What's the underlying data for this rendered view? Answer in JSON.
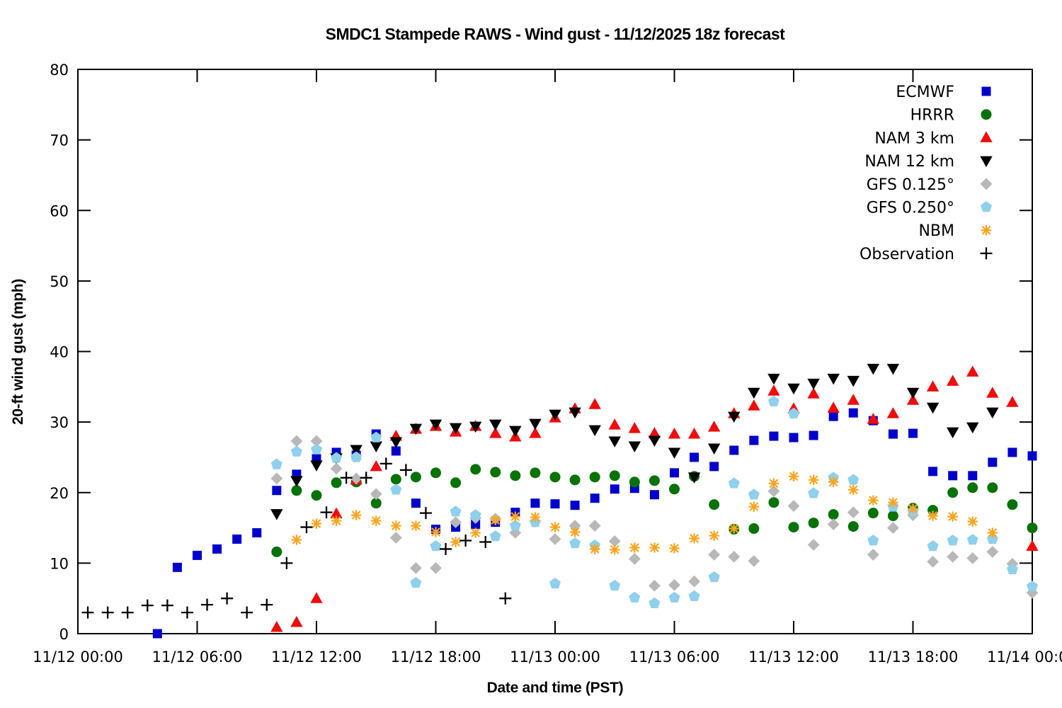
{
  "figure": {
    "background_color": "#ffffff",
    "border_color": "#000000"
  },
  "chart_data": {
    "type": "scatter",
    "title": "SMDC1 Stampede RAWS - Wind gust - 11/12/2025 18z forecast",
    "xlabel": "Date and time (PST)",
    "ylabel": "20-ft wind gust (mph)",
    "grid": false,
    "legend_position": "top-right-inside",
    "x_axis": {
      "unit": "hours since 11/12 00:00 PST",
      "range": [
        0,
        48
      ],
      "tick_hours": [
        0,
        6,
        12,
        18,
        24,
        30,
        36,
        42,
        48
      ],
      "tick_labels": [
        "11/12 00:00",
        "11/12 06:00",
        "11/12 12:00",
        "11/12 18:00",
        "11/13 00:00",
        "11/13 06:00",
        "11/13 12:00",
        "11/13 18:00",
        "11/14 00:00"
      ]
    },
    "y_axis": {
      "range": [
        0,
        80
      ],
      "tick_values": [
        0,
        10,
        20,
        30,
        40,
        50,
        60,
        70,
        80
      ],
      "tick_labels": [
        "0",
        "10",
        "20",
        "30",
        "40",
        "50",
        "60",
        "70",
        "80"
      ]
    },
    "series": [
      {
        "name": "ECMWF",
        "marker": "square",
        "color": "#0000cc",
        "points": [
          [
            4,
            0
          ],
          [
            5,
            9.4
          ],
          [
            6,
            11.1
          ],
          [
            7,
            12
          ],
          [
            8,
            13.4
          ],
          [
            9,
            14.3
          ],
          [
            10,
            20.3
          ],
          [
            11,
            22.6
          ],
          [
            12,
            24.8
          ],
          [
            13,
            25.7
          ],
          [
            14,
            25.3
          ],
          [
            15,
            28.3
          ],
          [
            16,
            25.9
          ],
          [
            17,
            18.5
          ],
          [
            18,
            14.8
          ],
          [
            19,
            15.1
          ],
          [
            20,
            15.5
          ],
          [
            21,
            15.8
          ],
          [
            22,
            17.2
          ],
          [
            23,
            18.5
          ],
          [
            24,
            18.4
          ],
          [
            25,
            18.2
          ],
          [
            26,
            19.2
          ],
          [
            27,
            20.5
          ],
          [
            28,
            20.6
          ],
          [
            29,
            19.7
          ],
          [
            30,
            22.8
          ],
          [
            31,
            25
          ],
          [
            32,
            23.7
          ],
          [
            33,
            26
          ],
          [
            34,
            27.4
          ],
          [
            35,
            28
          ],
          [
            36,
            27.8
          ],
          [
            37,
            28.1
          ],
          [
            38,
            30.8
          ],
          [
            39,
            31.3
          ],
          [
            40,
            30.2
          ],
          [
            41,
            28.3
          ],
          [
            42,
            28.4
          ],
          [
            43,
            23
          ],
          [
            44,
            22.4
          ],
          [
            45,
            22.4
          ],
          [
            46,
            24.3
          ],
          [
            47,
            25.7
          ],
          [
            48,
            25.2
          ]
        ]
      },
      {
        "name": "HRRR",
        "marker": "circle",
        "color": "#077307",
        "points": [
          [
            10,
            11.6
          ],
          [
            11,
            20.3
          ],
          [
            12,
            19.6
          ],
          [
            13,
            21.4
          ],
          [
            14,
            21.5
          ],
          [
            15,
            18.5
          ],
          [
            16,
            21.9
          ],
          [
            17,
            22.2
          ],
          [
            18,
            22.8
          ],
          [
            19,
            21.4
          ],
          [
            20,
            23.3
          ],
          [
            21,
            22.9
          ],
          [
            22,
            22.4
          ],
          [
            23,
            22.8
          ],
          [
            24,
            22.2
          ],
          [
            25,
            21.8
          ],
          [
            26,
            22.2
          ],
          [
            27,
            22.4
          ],
          [
            28,
            21.5
          ],
          [
            29,
            21.7
          ],
          [
            30,
            20.5
          ],
          [
            31,
            22.3
          ],
          [
            32,
            18.3
          ],
          [
            33,
            14.8
          ],
          [
            34,
            14.9
          ],
          [
            35,
            18.6
          ],
          [
            36,
            15.1
          ],
          [
            37,
            15.7
          ],
          [
            38,
            16.9
          ],
          [
            39,
            15.2
          ],
          [
            40,
            17.1
          ],
          [
            41,
            16.7
          ],
          [
            42,
            17.8
          ],
          [
            43,
            17.5
          ],
          [
            44,
            20
          ],
          [
            45,
            20.7
          ],
          [
            46,
            20.7
          ],
          [
            47,
            18.3
          ],
          [
            48,
            15
          ]
        ]
      },
      {
        "name": "NAM 3 km",
        "marker": "triangle-up",
        "color": "#f00c0c",
        "points": [
          [
            10,
            0.9
          ],
          [
            11,
            1.6
          ],
          [
            12,
            5
          ],
          [
            13,
            17
          ],
          [
            14,
            21.8
          ],
          [
            15,
            23.7
          ],
          [
            16,
            28
          ],
          [
            17,
            29
          ],
          [
            18,
            29.4
          ],
          [
            19,
            28.6
          ],
          [
            20,
            29.4
          ],
          [
            21,
            28.4
          ],
          [
            22,
            27.9
          ],
          [
            23,
            28.4
          ],
          [
            24,
            30.6
          ],
          [
            25,
            31.9
          ],
          [
            26,
            32.5
          ],
          [
            27,
            29.6
          ],
          [
            28,
            29.1
          ],
          [
            29,
            28.4
          ],
          [
            30,
            28.3
          ],
          [
            31,
            28.3
          ],
          [
            32,
            29.3
          ],
          [
            33,
            31.2
          ],
          [
            34,
            32.3
          ],
          [
            35,
            34.4
          ],
          [
            36,
            31.9
          ],
          [
            37,
            34
          ],
          [
            38,
            32
          ],
          [
            39,
            33.1
          ],
          [
            40,
            30.4
          ],
          [
            41,
            31.2
          ],
          [
            42,
            33.1
          ],
          [
            43,
            35
          ],
          [
            44,
            35.8
          ],
          [
            45,
            37.1
          ],
          [
            46,
            34.1
          ],
          [
            47,
            32.8
          ],
          [
            48,
            12.4
          ]
        ]
      },
      {
        "name": "NAM 12 km",
        "marker": "triangle-down",
        "color": "#000000",
        "points": [
          [
            10,
            17
          ],
          [
            11,
            21.7
          ],
          [
            12,
            23.9
          ],
          [
            13,
            24.9
          ],
          [
            14,
            26.1
          ],
          [
            15,
            26.6
          ],
          [
            16,
            27.2
          ],
          [
            17,
            29.1
          ],
          [
            18,
            29.7
          ],
          [
            19,
            29.2
          ],
          [
            20,
            29.4
          ],
          [
            21,
            29.7
          ],
          [
            22,
            28.8
          ],
          [
            23,
            29.8
          ],
          [
            24,
            31.1
          ],
          [
            25,
            31.4
          ],
          [
            26,
            28.9
          ],
          [
            27,
            27.3
          ],
          [
            28,
            26.6
          ],
          [
            29,
            27.4
          ],
          [
            30,
            25.7
          ],
          [
            31,
            22.2
          ],
          [
            32,
            26.3
          ],
          [
            33,
            30.8
          ],
          [
            34,
            34.2
          ],
          [
            35,
            36.2
          ],
          [
            36,
            34.8
          ],
          [
            37,
            35.5
          ],
          [
            38,
            36.2
          ],
          [
            39,
            35.9
          ],
          [
            40,
            37.6
          ],
          [
            41,
            37.6
          ],
          [
            42,
            34.2
          ],
          [
            43,
            32.1
          ],
          [
            44,
            28.6
          ],
          [
            45,
            29.3
          ],
          [
            46,
            31.4
          ]
        ]
      },
      {
        "name": "GFS 0.125°",
        "marker": "diamond",
        "color": "#b8b8b8",
        "points": [
          [
            10,
            22
          ],
          [
            11,
            27.3
          ],
          [
            12,
            27.3
          ],
          [
            13,
            23.4
          ],
          [
            14,
            22
          ],
          [
            15,
            19.8
          ],
          [
            16,
            13.6
          ],
          [
            17,
            9.3
          ],
          [
            18,
            9.3
          ],
          [
            19,
            15.8
          ],
          [
            20,
            16.4
          ],
          [
            21,
            16.3
          ],
          [
            22,
            14.3
          ],
          [
            23,
            15.9
          ],
          [
            24,
            13.4
          ],
          [
            25,
            15.3
          ],
          [
            26,
            15.3
          ],
          [
            27,
            13.1
          ],
          [
            28,
            10.6
          ],
          [
            29,
            6.8
          ],
          [
            30,
            6.9
          ],
          [
            31,
            7.4
          ],
          [
            32,
            11.2
          ],
          [
            33,
            10.9
          ],
          [
            34,
            10.3
          ],
          [
            35,
            20.2
          ],
          [
            36,
            18.1
          ],
          [
            37,
            12.6
          ],
          [
            38,
            15.5
          ],
          [
            39,
            17.2
          ],
          [
            40,
            11.2
          ],
          [
            41,
            15
          ],
          [
            42,
            16.8
          ],
          [
            43,
            10.2
          ],
          [
            44,
            10.9
          ],
          [
            45,
            10.7
          ],
          [
            46,
            11.6
          ],
          [
            47,
            9.9
          ],
          [
            48,
            5.8
          ]
        ]
      },
      {
        "name": "GFS 0.250°",
        "marker": "pentagon",
        "color": "#8fd0ec",
        "points": [
          [
            10,
            24
          ],
          [
            11,
            25.8
          ],
          [
            12,
            26.1
          ],
          [
            13,
            24.9
          ],
          [
            14,
            25
          ],
          [
            15,
            27.8
          ],
          [
            16,
            20.4
          ],
          [
            17,
            7.2
          ],
          [
            18,
            12.4
          ],
          [
            19,
            17.3
          ],
          [
            20,
            16.8
          ],
          [
            21,
            13.8
          ],
          [
            22,
            15.3
          ],
          [
            23,
            15.8
          ],
          [
            24,
            7.1
          ],
          [
            25,
            12.8
          ],
          [
            26,
            12.5
          ],
          [
            27,
            6.8
          ],
          [
            28,
            5.1
          ],
          [
            29,
            4.3
          ],
          [
            30,
            5.1
          ],
          [
            31,
            5.3
          ],
          [
            32,
            8
          ],
          [
            33,
            21.3
          ],
          [
            34,
            19.7
          ],
          [
            35,
            32.9
          ],
          [
            36,
            31.2
          ],
          [
            37,
            19.9
          ],
          [
            38,
            22.1
          ],
          [
            39,
            21.8
          ],
          [
            40,
            13.2
          ],
          [
            41,
            18
          ],
          [
            42,
            17.3
          ],
          [
            43,
            12.4
          ],
          [
            44,
            13.2
          ],
          [
            45,
            13.3
          ],
          [
            46,
            13.4
          ],
          [
            47,
            9.1
          ],
          [
            48,
            6.7
          ]
        ]
      },
      {
        "name": "NBM",
        "marker": "asterisk",
        "color": "#ffa41e",
        "points": [
          [
            11,
            13.3
          ],
          [
            12,
            15.6
          ],
          [
            13,
            16
          ],
          [
            14,
            16.8
          ],
          [
            15,
            16
          ],
          [
            16,
            15.3
          ],
          [
            17,
            15.3
          ],
          [
            18,
            14.4
          ],
          [
            19,
            13
          ],
          [
            20,
            14.3
          ],
          [
            21,
            16.1
          ],
          [
            22,
            16.6
          ],
          [
            23,
            16.5
          ],
          [
            24,
            15.1
          ],
          [
            25,
            14.4
          ],
          [
            26,
            12
          ],
          [
            27,
            11.9
          ],
          [
            28,
            12.2
          ],
          [
            29,
            12.2
          ],
          [
            30,
            12.1
          ],
          [
            31,
            13.5
          ],
          [
            32,
            13.9
          ],
          [
            33,
            14.9
          ],
          [
            34,
            18
          ],
          [
            35,
            21.3
          ],
          [
            36,
            22.3
          ],
          [
            37,
            21.8
          ],
          [
            38,
            21.5
          ],
          [
            39,
            20.4
          ],
          [
            40,
            18.9
          ],
          [
            41,
            18.6
          ],
          [
            42,
            17.7
          ],
          [
            43,
            16.7
          ],
          [
            44,
            16.6
          ],
          [
            45,
            15.9
          ],
          [
            46,
            14.3
          ]
        ]
      },
      {
        "name": "Observation",
        "marker": "plus",
        "color": "#000000",
        "points": [
          [
            0.5,
            3
          ],
          [
            1.5,
            3
          ],
          [
            2.5,
            3
          ],
          [
            3.5,
            4
          ],
          [
            4.5,
            4
          ],
          [
            5.5,
            3
          ],
          [
            6.5,
            4.1
          ],
          [
            7.5,
            5
          ],
          [
            8.5,
            3
          ],
          [
            9.5,
            4.1
          ],
          [
            10.5,
            10
          ],
          [
            11.5,
            15.1
          ],
          [
            12.5,
            17.2
          ],
          [
            13.5,
            22.1
          ],
          [
            14.5,
            22.1
          ],
          [
            15.5,
            24.1
          ],
          [
            16.5,
            23.2
          ],
          [
            17.5,
            17.1
          ],
          [
            18.5,
            12
          ],
          [
            19.5,
            13.2
          ],
          [
            20.5,
            13
          ],
          [
            21.5,
            5
          ]
        ]
      }
    ]
  }
}
